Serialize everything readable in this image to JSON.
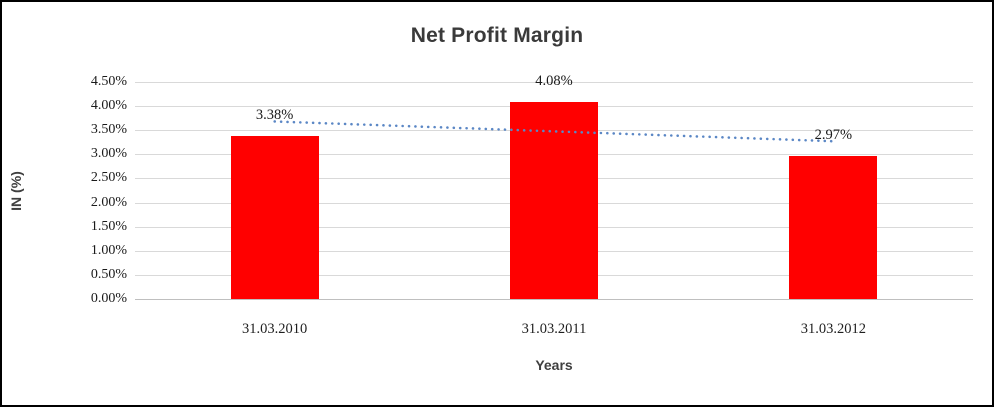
{
  "chart_data": {
    "type": "bar",
    "title": "Net Profit Margin",
    "xlabel": "Years",
    "ylabel": "IN (%)",
    "categories": [
      "31.03.2010",
      "31.03.2011",
      "31.03.2012"
    ],
    "values": [
      3.38,
      4.08,
      2.97
    ],
    "data_labels": [
      "3.38%",
      "4.08%",
      "2.97%"
    ],
    "y_ticks": [
      "0.00%",
      "0.50%",
      "1.00%",
      "1.50%",
      "2.00%",
      "2.50%",
      "3.00%",
      "3.50%",
      "4.00%",
      "4.50%"
    ],
    "ylim": [
      0,
      4.5
    ],
    "y_step": 0.5,
    "grid": true,
    "legend": "none",
    "bar_color": "#ff0000",
    "trendline": {
      "type": "linear",
      "style": "dotted",
      "color": "#5b87c5"
    },
    "colors": {
      "gridline": "#d9d9d9",
      "axis_line": "#bfbfbf",
      "title": "#3a3a3a",
      "tick_label": "#1a1a1a",
      "axis_title": "#3f3f3f",
      "frame_border": "#000000",
      "background": "#ffffff"
    }
  }
}
